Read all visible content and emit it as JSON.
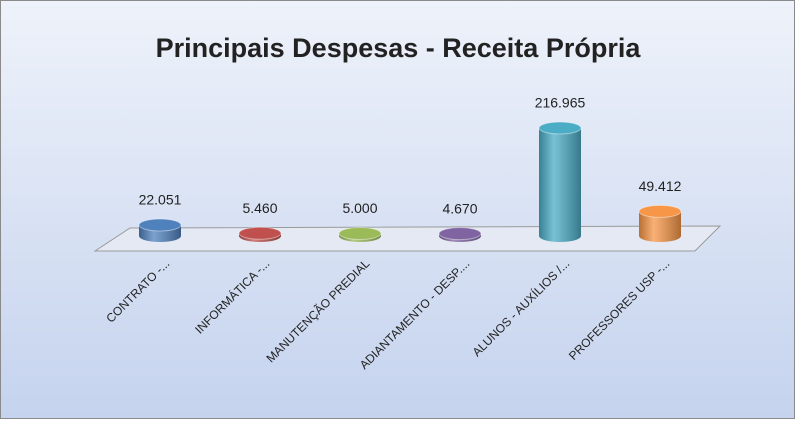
{
  "chart_data": {
    "type": "bar3d",
    "title": "Principais Despesas - Receita Própria",
    "categories": [
      "CONTRATO -...",
      "INFORMÁTICA -...",
      "MANUTENÇÃO PREDIAL",
      "ADIANTAMENTO - DESP....",
      "ALUNOS - AUXÍLIOS /...",
      "PROFESSORES USP -..."
    ],
    "values": [
      22051,
      5460,
      5000,
      4670,
      216965,
      49412
    ],
    "value_labels": [
      "22.051",
      "5.460",
      "5.000",
      "4.670",
      "216.965",
      "49.412"
    ],
    "colors": [
      "#4f81bd",
      "#c0504d",
      "#9bbb59",
      "#8064a2",
      "#4bacc6",
      "#f79646"
    ]
  }
}
